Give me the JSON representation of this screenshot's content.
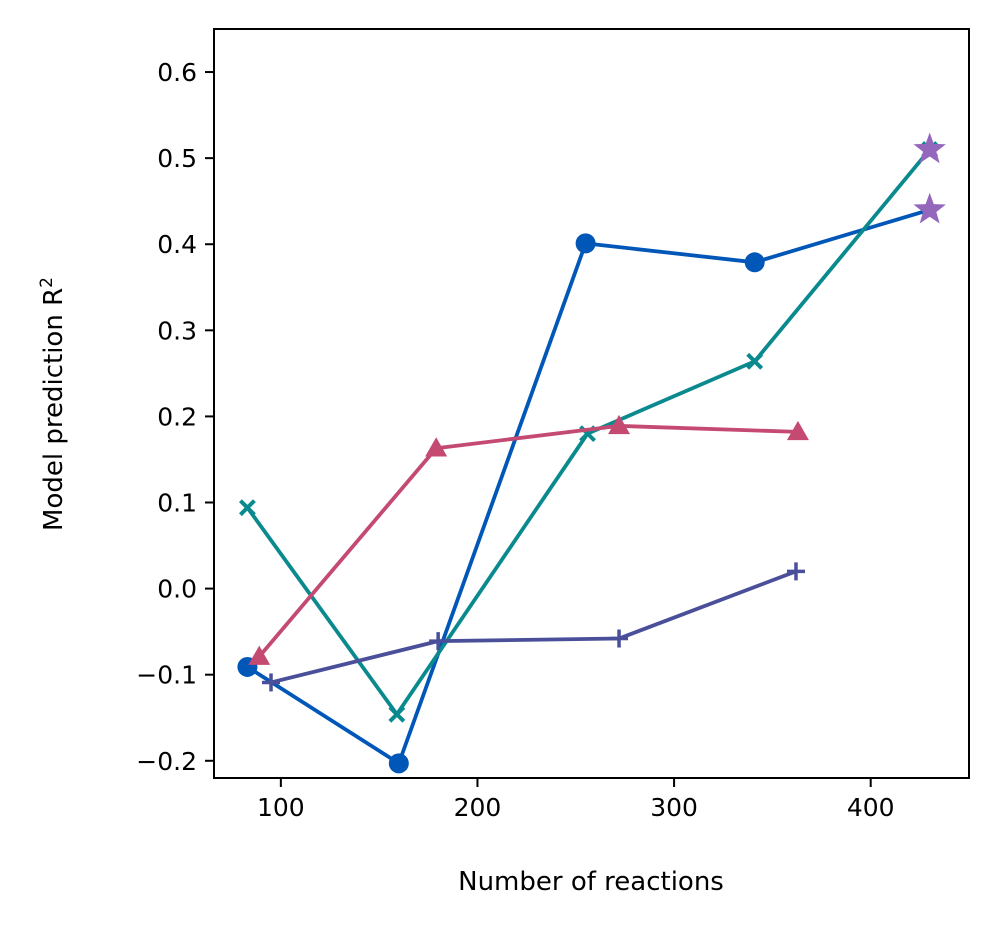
{
  "chart_data": {
    "type": "line",
    "xlabel": "Number of reactions",
    "ylabel": "Model prediction R",
    "ylabel_superscript": "2",
    "xlim": [
      66,
      450
    ],
    "ylim": [
      -0.22,
      0.65
    ],
    "xticks": [
      100,
      200,
      300,
      400
    ],
    "xtick_labels": [
      "100",
      "200",
      "300",
      "400"
    ],
    "yticks": [
      -0.2,
      -0.1,
      0.0,
      0.1,
      0.2,
      0.3,
      0.4,
      0.5,
      0.6
    ],
    "ytick_labels": [
      "−0.2",
      "−0.1",
      "0.0",
      "0.1",
      "0.2",
      "0.3",
      "0.4",
      "0.5",
      "0.6"
    ],
    "grid": false,
    "series": [
      {
        "color": "#0057b8",
        "marker": "circle",
        "x": [
          83,
          160,
          255,
          341
        ],
        "y": [
          -0.091,
          -0.203,
          0.401,
          0.379
        ]
      },
      {
        "color": "#0057b8",
        "marker": "none",
        "x": [
          341,
          430
        ],
        "y": [
          0.379,
          0.44
        ]
      },
      {
        "color": "#0a8a8f",
        "marker": "x",
        "x": [
          83,
          159,
          256,
          341,
          430
        ],
        "y": [
          0.094,
          -0.146,
          0.18,
          0.264,
          0.51
        ]
      },
      {
        "color": "#c44a72",
        "marker": "triangle",
        "x": [
          89,
          179,
          272,
          363
        ],
        "y": [
          -0.079,
          0.163,
          0.189,
          0.182
        ]
      },
      {
        "color": "#4a4f9a",
        "marker": "plus",
        "x": [
          95,
          180,
          272,
          362
        ],
        "y": [
          -0.109,
          -0.061,
          -0.058,
          0.02
        ]
      },
      {
        "color": "#9467bd",
        "marker": "star",
        "x": [
          430,
          430
        ],
        "y": [
          0.51,
          0.44
        ]
      }
    ]
  }
}
